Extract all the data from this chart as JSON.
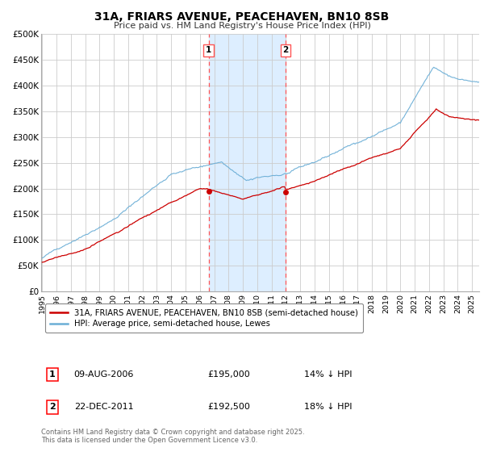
{
  "title": "31A, FRIARS AVENUE, PEACEHAVEN, BN10 8SB",
  "subtitle": "Price paid vs. HM Land Registry's House Price Index (HPI)",
  "ylim": [
    0,
    500000
  ],
  "yticks": [
    0,
    50000,
    100000,
    150000,
    200000,
    250000,
    300000,
    350000,
    400000,
    450000,
    500000
  ],
  "ytick_labels": [
    "£0",
    "£50K",
    "£100K",
    "£150K",
    "£200K",
    "£250K",
    "£300K",
    "£350K",
    "£400K",
    "£450K",
    "£500K"
  ],
  "xlim_start": 1994.92,
  "xlim_end": 2025.5,
  "xticks": [
    1995,
    1996,
    1997,
    1998,
    1999,
    2000,
    2001,
    2002,
    2003,
    2004,
    2005,
    2006,
    2007,
    2008,
    2009,
    2010,
    2011,
    2012,
    2013,
    2014,
    2015,
    2016,
    2017,
    2018,
    2019,
    2020,
    2021,
    2022,
    2023,
    2024,
    2025
  ],
  "hpi_color": "#6baed6",
  "price_color": "#cc0000",
  "marker_color": "#cc0000",
  "vline_color": "#ff5555",
  "shade_color": "#ddeeff",
  "event1_x": 2006.61,
  "event2_x": 2011.98,
  "event1_price": 195000,
  "event1_label": "09-AUG-2006",
  "event1_pct": "14% ↓ HPI",
  "event2_price": 192500,
  "event2_label": "22-DEC-2011",
  "event2_pct": "18% ↓ HPI",
  "legend_label_price": "31A, FRIARS AVENUE, PEACEHAVEN, BN10 8SB (semi-detached house)",
  "legend_label_hpi": "HPI: Average price, semi-detached house, Lewes",
  "footer": "Contains HM Land Registry data © Crown copyright and database right 2025.\nThis data is licensed under the Open Government Licence v3.0.",
  "background_color": "#ffffff",
  "grid_color": "#cccccc"
}
